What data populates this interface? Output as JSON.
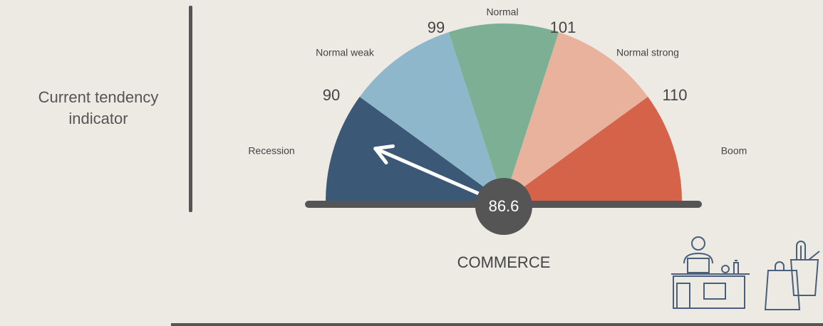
{
  "chart_data": {
    "type": "gauge",
    "title": "COMMERCE",
    "label": "Current tendency indicator",
    "thresholds": [
      90,
      99,
      101,
      110
    ],
    "segments": [
      {
        "name": "Recession",
        "color": "#3b5877"
      },
      {
        "name": "Normal weak",
        "color": "#8fb7cb"
      },
      {
        "name": "Normal",
        "color": "#7daf94"
      },
      {
        "name": "Normal strong",
        "color": "#e9b29d"
      },
      {
        "name": "Boom",
        "color": "#d4634a"
      }
    ],
    "value": 86.6,
    "needle_color": "#ffffff"
  }
}
